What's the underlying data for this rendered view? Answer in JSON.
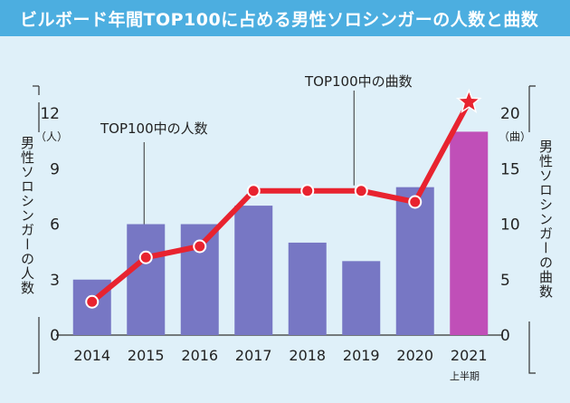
{
  "title": "ビルボード年間TOP100に占める男性ソロシンガーの人数と曲数",
  "y_left_label": "男性ソロシンガーの人数",
  "y_left_unit": "（人）",
  "y_right_label": "男性ソロシンガーの曲数",
  "y_right_unit": "（曲）",
  "callout_people": "TOP100中の人数",
  "callout_songs": "TOP100中の曲数",
  "x_sublabel": "上半期",
  "colors": {
    "title_bg": "#4caee0",
    "panel_bg": "#dff0f9",
    "bar": "#7777c4",
    "bar_highlight": "#c04fb8",
    "line": "#e8232f"
  },
  "chart_data": {
    "type": "bar",
    "categories": [
      "2014",
      "2015",
      "2016",
      "2017",
      "2018",
      "2019",
      "2020",
      "2021"
    ],
    "ylim_left": [
      0,
      12
    ],
    "ylim_right": [
      0,
      20
    ],
    "yticks_left": [
      0,
      3,
      6,
      9,
      12
    ],
    "yticks_right": [
      0,
      5,
      10,
      15,
      20
    ],
    "series": [
      {
        "name": "TOP100中の人数",
        "type": "bar",
        "axis": "left",
        "values": [
          3,
          6,
          6,
          7,
          5,
          4,
          8,
          11
        ]
      },
      {
        "name": "TOP100中の曲数",
        "type": "line",
        "axis": "right",
        "values": [
          3,
          7,
          8,
          13,
          13,
          13,
          12,
          21
        ]
      }
    ],
    "grid": false,
    "last_point_marker": "star"
  }
}
